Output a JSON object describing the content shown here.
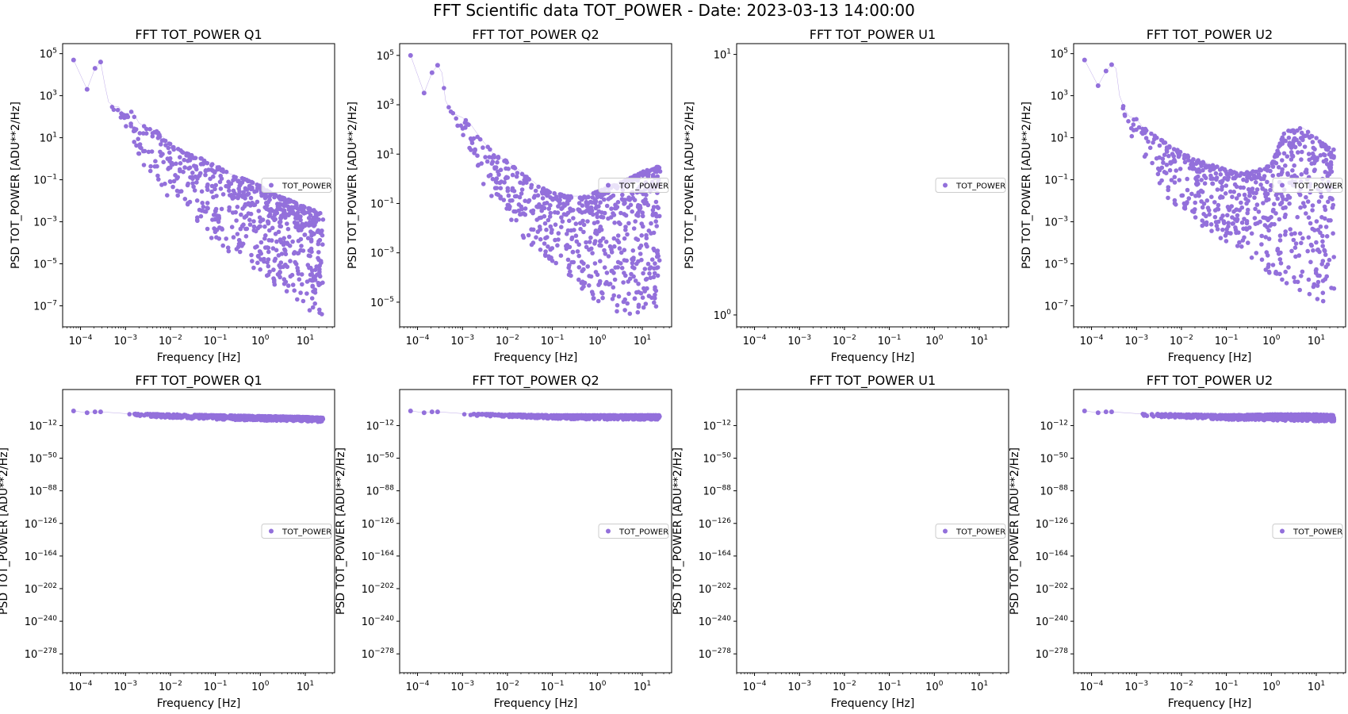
{
  "figure_title": "FFT Scientific data TOT_POWER - Date: 2023-03-13 14:00:00",
  "colors": {
    "series": "#9370DB",
    "legend_border": "#cccccc",
    "axes": "#000000"
  },
  "chart_data": [
    {
      "type": "scatter",
      "title": "FFT TOT_POWER Q1",
      "xlabel": "Frequency [Hz]",
      "ylabel": "PSD TOT_POWER [ADU**2/Hz]",
      "xscale": "log",
      "yscale": "log",
      "xlim": [
        4e-05,
        45
      ],
      "ylim": [
        1e-08,
        300000.0
      ],
      "xtick_exponents": [
        -4,
        -3,
        -2,
        -1,
        0,
        1
      ],
      "ytick_exponents": [
        -7,
        -5,
        -3,
        -1,
        1,
        3,
        5
      ],
      "legend": {
        "labels": [
          "TOT_POWER"
        ],
        "loc": "center right"
      },
      "series": [
        {
          "name": "TOT_POWER",
          "x": [
            7e-05,
            0.00014,
            0.00021,
            0.00028,
            0.00035,
            0.00042,
            0.00056,
            0.0007,
            0.001,
            0.0014,
            0.002,
            0.003,
            0.005,
            0.01,
            0.02,
            0.05,
            0.1,
            0.2,
            0.5,
            1,
            2,
            5,
            10,
            20,
            25
          ],
          "y": [
            50000,
            2000,
            20000,
            40000,
            3000,
            500,
            300,
            300,
            100,
            200,
            50,
            30,
            20,
            5,
            2,
            1,
            0.5,
            0.2,
            0.1,
            0.05,
            0.02,
            0.01,
            0.005,
            0.003,
            0.002
          ],
          "y_min_envelope": [
            50000,
            2000,
            20000,
            40000,
            3000,
            500,
            80,
            30,
            10,
            3,
            1,
            0.3,
            0.05,
            0.01,
            0.003,
            0.0005,
            0.0001,
            3e-05,
            1e-05,
            3e-06,
            1e-06,
            3e-07,
            1e-07,
            2e-08,
            2e-08
          ]
        }
      ]
    },
    {
      "type": "scatter",
      "title": "FFT TOT_POWER Q2",
      "xlabel": "Frequency [Hz]",
      "ylabel": "PSD TOT_POWER [ADU**2/Hz]",
      "xscale": "log",
      "yscale": "log",
      "xlim": [
        4e-05,
        45
      ],
      "ylim": [
        1e-06,
        300000.0
      ],
      "xtick_exponents": [
        -4,
        -3,
        -2,
        -1,
        0,
        1
      ],
      "ytick_exponents": [
        -5,
        -3,
        -1,
        1,
        3,
        5
      ],
      "legend": {
        "labels": [
          "TOT_POWER"
        ],
        "loc": "center right"
      },
      "series": [
        {
          "name": "TOT_POWER",
          "x": [
            7e-05,
            0.00014,
            0.00021,
            0.00028,
            0.00035,
            0.00042,
            0.00056,
            0.0007,
            0.001,
            0.0014,
            0.002,
            0.003,
            0.005,
            0.01,
            0.02,
            0.05,
            0.1,
            0.2,
            0.5,
            1,
            2,
            5,
            10,
            20,
            25
          ],
          "y": [
            100000,
            3000,
            20000,
            40000,
            20000,
            1500,
            500,
            400,
            300,
            200,
            80,
            30,
            10,
            5,
            2,
            0.5,
            0.3,
            0.2,
            0.2,
            0.3,
            0.5,
            1,
            2,
            3,
            3
          ],
          "y_min_envelope": [
            100000,
            3000,
            20000,
            40000,
            20000,
            1500,
            300,
            100,
            30,
            10,
            3,
            0.5,
            0.1,
            0.03,
            0.005,
            0.001,
            0.0003,
            0.0001,
            3e-05,
            1e-05,
            5e-06,
            3e-06,
            3e-06,
            5e-06,
            1e-05
          ]
        }
      ]
    },
    {
      "type": "scatter",
      "title": "FFT TOT_POWER U1",
      "xlabel": "Frequency [Hz]",
      "ylabel": "PSD TOT_POWER [ADU**2/Hz]",
      "xscale": "log",
      "yscale": "log",
      "xlim": [
        4e-05,
        45
      ],
      "ylim": [
        0.9,
        11
      ],
      "xtick_exponents": [
        -4,
        -3,
        -2,
        -1,
        0,
        1
      ],
      "ytick_exponents": [
        0,
        1
      ],
      "legend": {
        "labels": [
          "TOT_POWER"
        ],
        "loc": "center right"
      },
      "series": [
        {
          "name": "TOT_POWER",
          "x": [],
          "y": [],
          "y_min_envelope": []
        }
      ]
    },
    {
      "type": "scatter",
      "title": "FFT TOT_POWER U2",
      "xlabel": "Frequency [Hz]",
      "ylabel": "PSD TOT_POWER [ADU**2/Hz]",
      "xscale": "log",
      "yscale": "log",
      "xlim": [
        4e-05,
        45
      ],
      "ylim": [
        1e-08,
        300000.0
      ],
      "xtick_exponents": [
        -4,
        -3,
        -2,
        -1,
        0,
        1
      ],
      "ytick_exponents": [
        -7,
        -5,
        -3,
        -1,
        1,
        3,
        5
      ],
      "legend": {
        "labels": [
          "TOT_POWER"
        ],
        "loc": "center right"
      },
      "series": [
        {
          "name": "TOT_POWER",
          "x": [
            7e-05,
            0.00014,
            0.00021,
            0.00028,
            0.00035,
            0.00042,
            0.00056,
            0.0007,
            0.001,
            0.0014,
            0.002,
            0.003,
            0.005,
            0.01,
            0.02,
            0.05,
            0.1,
            0.2,
            0.5,
            1,
            2,
            5,
            10,
            20,
            25
          ],
          "y": [
            50000,
            3000,
            15000,
            30000,
            20000,
            1000,
            200,
            100,
            80,
            30,
            20,
            10,
            5,
            2,
            1,
            0.5,
            0.3,
            0.2,
            0.3,
            0.5,
            20,
            30,
            10,
            3,
            3
          ],
          "y_min_envelope": [
            50000,
            3000,
            15000,
            30000,
            20000,
            1000,
            50,
            10,
            3,
            1,
            0.3,
            0.05,
            0.01,
            0.003,
            0.001,
            0.0003,
            0.0001,
            3e-05,
            1e-05,
            3e-06,
            1e-06,
            5e-07,
            2e-07,
            1e-07,
            1e-07
          ]
        }
      ]
    },
    {
      "type": "scatter",
      "title": "FFT TOT_POWER Q1",
      "xlabel": "Frequency [Hz]",
      "ylabel": "PSD TOT_POWER [ADU**2/Hz]",
      "xscale": "log",
      "yscale": "log",
      "xlim": [
        4e-05,
        45
      ],
      "ylim": [
        1e-300,
        1e+30
      ],
      "xtick_exponents": [
        -4,
        -3,
        -2,
        -1,
        0,
        1
      ],
      "ytick_exponents": [
        -12,
        -50,
        -88,
        -126,
        -164,
        -202,
        -240,
        -278
      ],
      "legend": {
        "labels": [
          "TOT_POWER"
        ],
        "loc": "center right"
      },
      "series": [
        {
          "name": "TOT_POWER",
          "x": [
            7e-05,
            0.00014,
            0.00021,
            0.00028,
            0.001,
            0.01,
            0.1,
            1,
            10,
            25
          ],
          "y": [
            100000.0,
            1000.0,
            10000.0,
            10000.0,
            100.0,
            10.0,
            1.0,
            0.1,
            0.01,
            0.001
          ],
          "y_min_envelope": [
            100000.0,
            1000.0,
            10000.0,
            10000.0,
            1.0,
            0.001,
            1e-05,
            1e-06,
            1e-07,
            1e-08
          ]
        }
      ]
    },
    {
      "type": "scatter",
      "title": "FFT TOT_POWER Q2",
      "xlabel": "Frequency [Hz]",
      "ylabel": "PSD TOT_POWER [ADU**2/Hz]",
      "xscale": "log",
      "yscale": "log",
      "xlim": [
        4e-05,
        45
      ],
      "ylim": [
        1e-300,
        1e+30
      ],
      "xtick_exponents": [
        -4,
        -3,
        -2,
        -1,
        0,
        1
      ],
      "ytick_exponents": [
        -12,
        -50,
        -88,
        -126,
        -164,
        -202,
        -240,
        -278
      ],
      "legend": {
        "labels": [
          "TOT_POWER"
        ],
        "loc": "center right"
      },
      "series": [
        {
          "name": "TOT_POWER",
          "x": [
            7e-05,
            0.00014,
            0.00021,
            0.00028,
            0.001,
            0.01,
            0.1,
            1,
            10,
            25
          ],
          "y": [
            100000.0,
            1000.0,
            10000.0,
            10000.0,
            100.0,
            10.0,
            1.0,
            1.0,
            1.0,
            1.0
          ],
          "y_min_envelope": [
            100000.0,
            1000.0,
            10000.0,
            10000.0,
            1.0,
            0.01,
            0.0001,
            1e-05,
            1e-05,
            1e-05
          ]
        }
      ]
    },
    {
      "type": "scatter",
      "title": "FFT TOT_POWER U1",
      "xlabel": "Frequency [Hz]",
      "ylabel": "PSD TOT_POWER [ADU**2/Hz]",
      "xscale": "log",
      "yscale": "log",
      "xlim": [
        4e-05,
        45
      ],
      "ylim": [
        1e-300,
        1e+30
      ],
      "xtick_exponents": [
        -4,
        -3,
        -2,
        -1,
        0,
        1
      ],
      "ytick_exponents": [
        -12,
        -50,
        -88,
        -126,
        -164,
        -202,
        -240,
        -278
      ],
      "legend": {
        "labels": [
          "TOT_POWER"
        ],
        "loc": "center right"
      },
      "series": [
        {
          "name": "TOT_POWER",
          "x": [],
          "y": [],
          "y_min_envelope": []
        }
      ]
    },
    {
      "type": "scatter",
      "title": "FFT TOT_POWER U2",
      "xlabel": "Frequency [Hz]",
      "ylabel": "PSD TOT_POWER [ADU**2/Hz]",
      "xscale": "log",
      "yscale": "log",
      "xlim": [
        4e-05,
        45
      ],
      "ylim": [
        1e-300,
        1e+30
      ],
      "xtick_exponents": [
        -4,
        -3,
        -2,
        -1,
        0,
        1
      ],
      "ytick_exponents": [
        -12,
        -50,
        -88,
        -126,
        -164,
        -202,
        -240,
        -278
      ],
      "legend": {
        "labels": [
          "TOT_POWER"
        ],
        "loc": "center right"
      },
      "series": [
        {
          "name": "TOT_POWER",
          "x": [
            7e-05,
            0.00014,
            0.00021,
            0.00028,
            0.001,
            0.01,
            0.1,
            1,
            10,
            25
          ],
          "y": [
            100000.0,
            1000.0,
            10000.0,
            10000.0,
            100.0,
            10.0,
            1.0,
            10.0,
            10.0,
            1.0
          ],
          "y_min_envelope": [
            100000.0,
            1000.0,
            10000.0,
            10000.0,
            0.1,
            0.001,
            1e-05,
            1e-06,
            1e-07,
            1e-07
          ]
        }
      ]
    }
  ]
}
